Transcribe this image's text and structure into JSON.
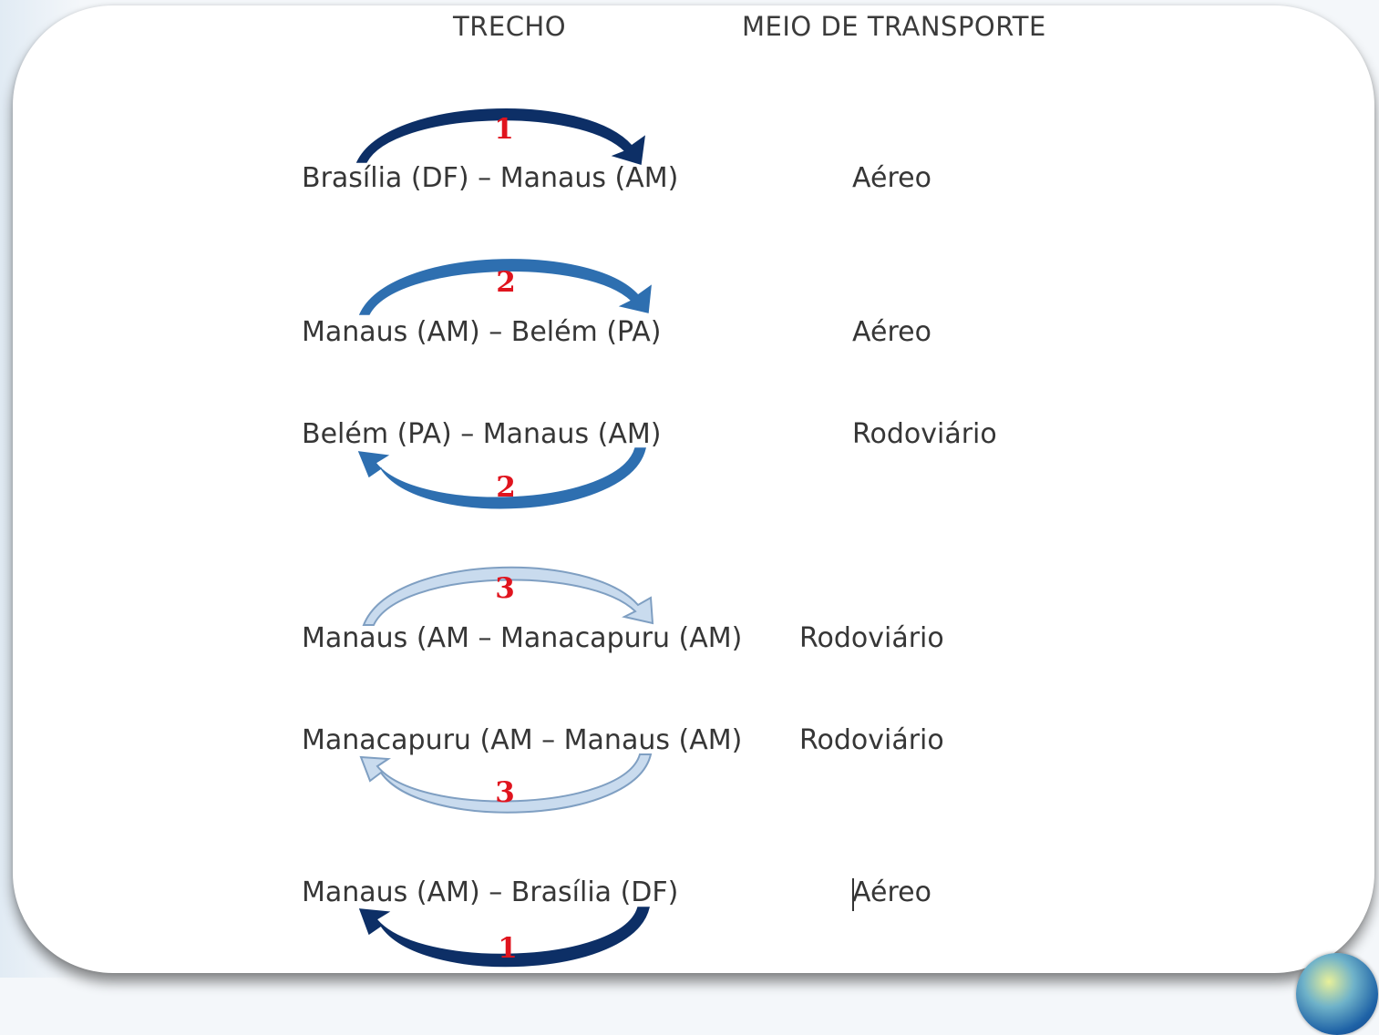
{
  "headers": {
    "segment": "TRECHO",
    "transport": "MEIO DE TRANSPORTE"
  },
  "rows": [
    {
      "segment": "Brasília (DF) – Manaus (AM)",
      "transport": "Aéreo",
      "step": "1",
      "arrow_direction": "forward",
      "arrow_color": "#0d2f66"
    },
    {
      "segment": "Manaus (AM) – Belém (PA)",
      "transport": "Aéreo",
      "step": "2",
      "arrow_direction": "forward",
      "arrow_color": "#2e6fb0"
    },
    {
      "segment": "Belém (PA) – Manaus (AM)",
      "transport": "Rodoviário",
      "step": "2",
      "arrow_direction": "return",
      "arrow_color": "#2e6fb0"
    },
    {
      "segment": "Manaus (AM – Manacapuru (AM)",
      "transport": "Rodoviário",
      "step": "3",
      "arrow_direction": "forward",
      "arrow_color": "#a9c4e0"
    },
    {
      "segment": "Manacapuru (AM – Manaus (AM)",
      "transport": "Rodoviário",
      "step": "3",
      "arrow_direction": "return",
      "arrow_color": "#a9c4e0"
    },
    {
      "segment": "Manaus (AM) – Brasília (DF)",
      "transport": "Aéreo",
      "step": "1",
      "arrow_direction": "return",
      "arrow_color": "#0d2f66"
    }
  ],
  "colors": {
    "step_number": "#e0141e",
    "text": "#363636"
  }
}
